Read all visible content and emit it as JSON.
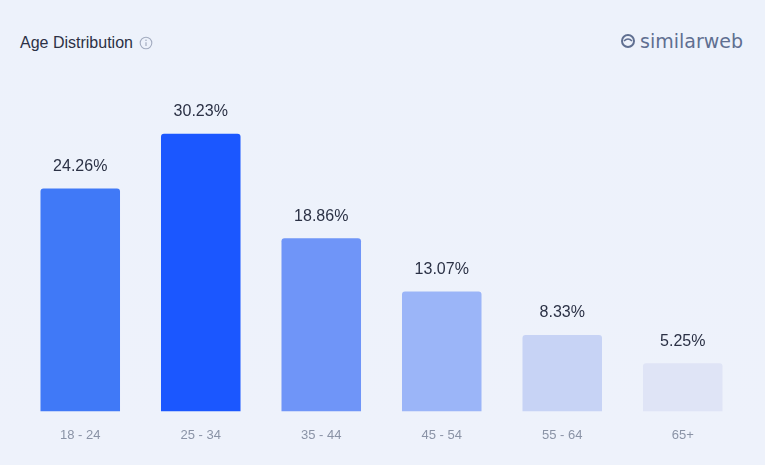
{
  "chart_data": {
    "type": "bar",
    "title": "Age Distribution",
    "categories": [
      "18 - 24",
      "25 - 34",
      "35 - 44",
      "45 - 54",
      "55 - 64",
      "65+"
    ],
    "values": [
      24.26,
      30.23,
      18.86,
      13.07,
      8.33,
      5.25
    ],
    "value_labels": [
      "24.26%",
      "30.23%",
      "18.86%",
      "13.07%",
      "8.33%",
      "5.25%"
    ],
    "colors": [
      "#4079f7",
      "#1b57ff",
      "#6f95f8",
      "#9bb5f8",
      "#c7d3f5",
      "#dfe4f6"
    ],
    "grid": false,
    "data_labels": true,
    "tick_labels": "x",
    "annotations": [
      "similarweb"
    ]
  }
}
